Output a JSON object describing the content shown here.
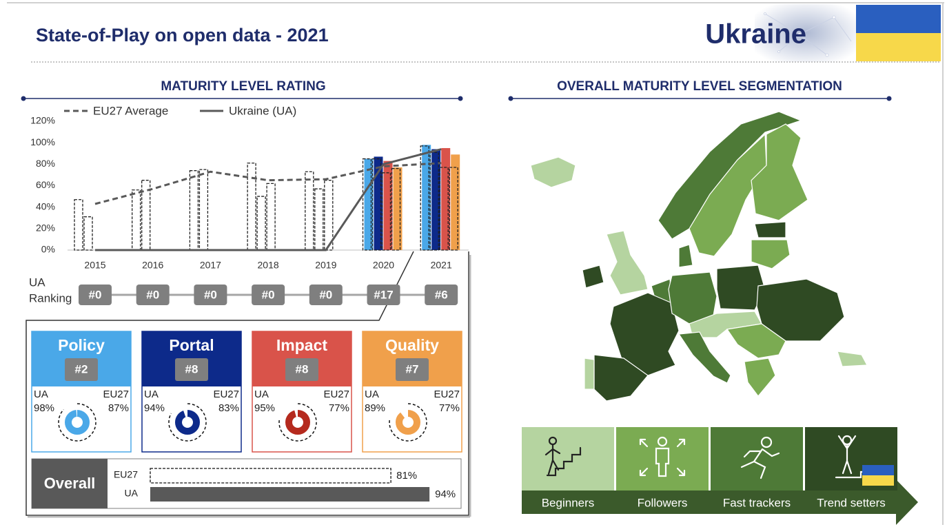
{
  "header": {
    "title": "State-of-Play on open data - 2021",
    "country": "Ukraine"
  },
  "sections": {
    "left": "MATURITY LEVEL RATING",
    "right": "OVERALL MATURITY LEVEL SEGMENTATION"
  },
  "chart_data": {
    "type": "combo",
    "categories": [
      "2015",
      "2016",
      "2017",
      "2018",
      "2019",
      "2020",
      "2021"
    ],
    "ylim": [
      0,
      120
    ],
    "yticks": [
      {
        "value": 0,
        "label": "0%"
      },
      {
        "value": 20,
        "label": "20%"
      },
      {
        "value": 40,
        "label": "40%"
      },
      {
        "value": 60,
        "label": "60%"
      },
      {
        "value": 80,
        "label": "80%"
      },
      {
        "value": 100,
        "label": "100%"
      },
      {
        "value": 120,
        "label": "120%"
      }
    ],
    "series": [
      {
        "name": "EU27 Average",
        "color": "#595959",
        "style": "dashed",
        "values": [
          43,
          57,
          73,
          65,
          66,
          78,
          81
        ]
      },
      {
        "name": "Ukraine (UA)",
        "color": "#595959",
        "style": "solid",
        "values": [
          0,
          0,
          0,
          0,
          0,
          80,
          94
        ]
      }
    ],
    "bars": [
      {
        "color": "#4aa8e8",
        "values": [
          null,
          null,
          null,
          null,
          null,
          85,
          98
        ]
      },
      {
        "color": "#0d2a8a",
        "values": [
          null,
          null,
          null,
          null,
          null,
          87,
          94
        ]
      },
      {
        "color": "#d9534a",
        "values": [
          null,
          null,
          null,
          null,
          null,
          83,
          95
        ]
      },
      {
        "color": "#f0a04b",
        "values": [
          null,
          null,
          null,
          null,
          null,
          77,
          89
        ]
      }
    ],
    "outline_bars": [
      {
        "color": "#222222",
        "values": [
          47,
          56,
          74,
          81,
          73,
          85,
          97
        ]
      },
      {
        "color": "#222222",
        "values": [
          31,
          65,
          75,
          50,
          57,
          85,
          91
        ]
      },
      {
        "color": "#222222",
        "values": [
          null,
          null,
          null,
          62,
          65,
          72,
          77
        ]
      },
      {
        "color": "#222222",
        "values": [
          null,
          null,
          null,
          null,
          null,
          76,
          77
        ]
      }
    ]
  },
  "ranking": {
    "label_lines": [
      "UA",
      "Ranking"
    ],
    "values": [
      "#0",
      "#0",
      "#0",
      "#0",
      "#0",
      "#17",
      "#6"
    ]
  },
  "dimension_labels": {
    "ua": "UA",
    "eu": "EU27"
  },
  "dimensions": [
    {
      "name": "Policy",
      "rank": "#2",
      "color": "#4aa8e8",
      "ring": "#4aa8e8",
      "ua": 98,
      "ua_label": "98%",
      "eu": 87,
      "eu_label": "87%"
    },
    {
      "name": "Portal",
      "rank": "#8",
      "color": "#0d2a8a",
      "ring": "#0d2a8a",
      "ua": 94,
      "ua_label": "94%",
      "eu": 83,
      "eu_label": "83%"
    },
    {
      "name": "Impact",
      "rank": "#8",
      "color": "#d9534a",
      "ring": "#b52a1e",
      "ua": 95,
      "ua_label": "95%",
      "eu": 77,
      "eu_label": "77%"
    },
    {
      "name": "Quality",
      "rank": "#7",
      "color": "#f0a04b",
      "ring": "#f0a04b",
      "ua": 89,
      "ua_label": "89%",
      "eu": 77,
      "eu_label": "77%"
    }
  ],
  "overall": {
    "title": "Overall",
    "xlim": [
      0,
      100
    ],
    "rows": [
      {
        "name": "EU27",
        "value": 81,
        "label": "81%",
        "style": "dashed"
      },
      {
        "name": "UA",
        "value": 94,
        "label": "94%",
        "style": "solid"
      }
    ]
  },
  "segments": [
    {
      "name": "Beginners",
      "color": "#b5d4a0"
    },
    {
      "name": "Followers",
      "color": "#7bab52"
    },
    {
      "name": "Fast trackers",
      "color": "#4e7a37"
    },
    {
      "name": "Trend setters",
      "color": "#2f4a23"
    }
  ]
}
